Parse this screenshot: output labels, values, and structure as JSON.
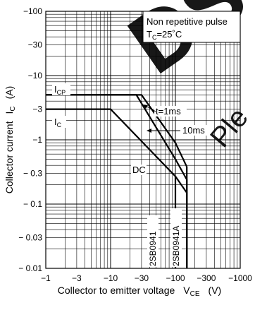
{
  "watermark": {
    "text_main": "DS",
    "text_side": "Ple",
    "color": "#e0001b"
  },
  "chart_data": {
    "type": "line",
    "title": "",
    "xlabel": "Collector to emitter voltage",
    "xlabel_sym": "V",
    "xlabel_sub": "CE",
    "xlabel_unit": "(V)",
    "ylabel": "Collector current",
    "ylabel_sym": "I",
    "ylabel_sub": "C",
    "ylabel_unit": "(A)",
    "x_scale": "log",
    "y_scale": "log",
    "xlim": [
      -1,
      -1000
    ],
    "ylim": [
      -0.01,
      -100
    ],
    "x_ticks": [
      -1,
      -3,
      -10,
      -30,
      -100,
      -300,
      -1000
    ],
    "x_tick_labels": [
      "−1",
      "−3",
      "−10",
      "−30",
      "−100",
      "−300",
      "−1000"
    ],
    "y_ticks": [
      -0.01,
      -0.03,
      -0.1,
      -0.3,
      -1,
      -3,
      -10,
      -30,
      -100
    ],
    "y_tick_labels": [
      "− 0.01",
      "− 0.03",
      "− 0.1",
      "− 0.3",
      "−1",
      "−3",
      "−10",
      "−30",
      "−100"
    ],
    "grid": true,
    "info_box": {
      "line1": "Non repetitive pulse",
      "line2_sym": "T",
      "line2_sub": "C",
      "line2_rest": "=25˚C"
    },
    "annotations": {
      "icp_sym": "I",
      "icp_sub": "CP",
      "ic_sym": "I",
      "ic_sub": "C",
      "t1ms": "t=1ms",
      "t10ms": "10ms",
      "dc": "DC",
      "dev1": "2SB0941",
      "dev2": "2SB0941A"
    },
    "series": [
      {
        "name": "t=1ms",
        "x": [
          -1,
          -30,
          -100,
          -150,
          -150
        ],
        "y": [
          -5,
          -5,
          -0.9,
          -0.38,
          -0.01
        ]
      },
      {
        "name": "10ms",
        "x": [
          -1,
          -25,
          -100,
          -150,
          -150
        ],
        "y": [
          -5,
          -5,
          -0.5,
          -0.24,
          -0.01
        ]
      },
      {
        "name": "DC",
        "x": [
          -1,
          -10,
          -100,
          -150,
          -150
        ],
        "y": [
          -3,
          -3,
          -0.27,
          -0.15,
          -0.01
        ]
      },
      {
        "name": "2SB0941",
        "x": [
          -100,
          -100
        ],
        "y": [
          -0.27,
          -0.01
        ]
      }
    ]
  }
}
